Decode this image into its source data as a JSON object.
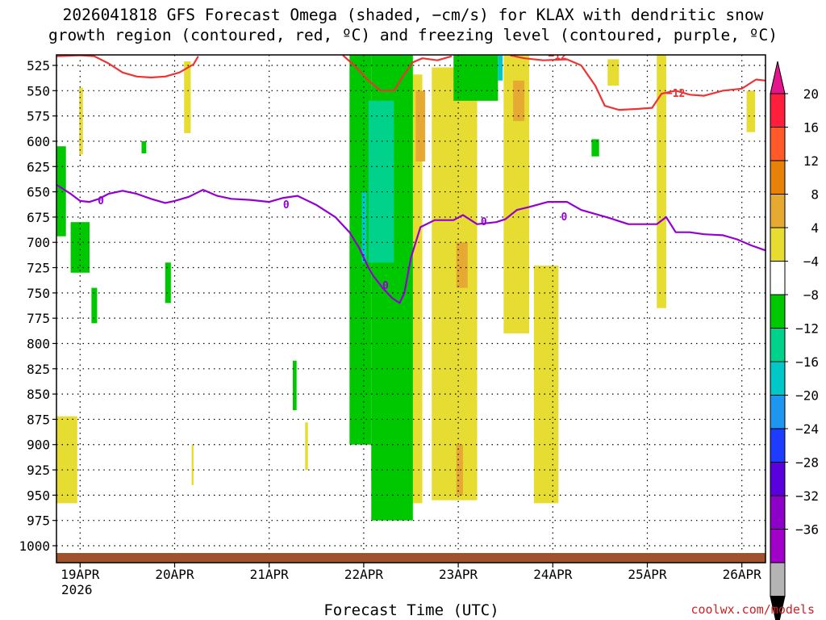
{
  "chart_data": {
    "type": "heatmap",
    "title_line1": "2026041818 GFS Forecast Omega (shaded, −cm/s) for KLAX with dendritic snow",
    "title_line2": "growth region (contoured, red, ºC) and freezing level (contoured, purple, ºC)",
    "xlabel": "Forecast Time (UTC)",
    "year_label": "2026",
    "credit": "coolwx.com/models",
    "x_ticks": [
      "19APR",
      "20APR",
      "21APR",
      "22APR",
      "23APR",
      "24APR",
      "25APR",
      "26APR"
    ],
    "x_range_days": [
      -0.25,
      7.25
    ],
    "y_ticks": [
      525,
      550,
      575,
      600,
      625,
      650,
      675,
      700,
      725,
      750,
      775,
      800,
      825,
      850,
      875,
      900,
      925,
      950,
      975,
      1000
    ],
    "y_range_hpa": [
      515,
      1010
    ],
    "colorbar": {
      "labels": [
        "20",
        "16",
        "12",
        "8",
        "4",
        "−4",
        "−8",
        "−12",
        "−16",
        "−20",
        "−24",
        "−28",
        "−32",
        "−36"
      ],
      "colors": [
        "#ff1e3c",
        "#ff5a28",
        "#e6820a",
        "#e6aa32",
        "#e6dc32",
        "#ffffff",
        "#00c800",
        "#00d28c",
        "#00c8c8",
        "#1e96f0",
        "#1e3cff",
        "#5a00dc",
        "#8c00c8",
        "#a000c8",
        "#b4b4b4"
      ],
      "top_color": "#e6148c",
      "bottom_color": "#000000"
    },
    "ground_color": "#a0522d",
    "series": [
      {
        "name": "freezing level (0 ºC)",
        "color": "#9400d3",
        "label": "0",
        "label_points": [
          [
            0.22,
            659
          ],
          [
            2.18,
            663
          ],
          [
            3.23,
            743
          ],
          [
            4.27,
            680
          ],
          [
            5.12,
            675
          ]
        ],
        "points": [
          [
            -0.25,
            643
          ],
          [
            -0.1,
            652
          ],
          [
            0.0,
            659
          ],
          [
            0.1,
            660
          ],
          [
            0.2,
            657
          ],
          [
            0.3,
            652
          ],
          [
            0.45,
            649
          ],
          [
            0.6,
            652
          ],
          [
            0.75,
            657
          ],
          [
            0.9,
            661
          ],
          [
            1.0,
            659
          ],
          [
            1.15,
            655
          ],
          [
            1.3,
            648
          ],
          [
            1.45,
            654
          ],
          [
            1.6,
            657
          ],
          [
            1.8,
            658
          ],
          [
            2.0,
            660
          ],
          [
            2.15,
            656
          ],
          [
            2.3,
            654
          ],
          [
            2.5,
            663
          ],
          [
            2.7,
            675
          ],
          [
            2.85,
            690
          ],
          [
            2.95,
            705
          ],
          [
            3.05,
            725
          ],
          [
            3.1,
            733
          ],
          [
            3.2,
            745
          ],
          [
            3.3,
            755
          ],
          [
            3.38,
            760
          ],
          [
            3.43,
            750
          ],
          [
            3.5,
            715
          ],
          [
            3.6,
            685
          ],
          [
            3.75,
            678
          ],
          [
            3.95,
            678
          ],
          [
            4.05,
            673
          ],
          [
            4.2,
            682
          ],
          [
            4.4,
            680
          ],
          [
            4.5,
            677
          ],
          [
            4.62,
            668
          ],
          [
            4.75,
            665
          ],
          [
            4.95,
            660
          ],
          [
            5.15,
            660
          ],
          [
            5.3,
            668
          ],
          [
            5.45,
            672
          ],
          [
            5.6,
            676
          ],
          [
            5.8,
            682
          ],
          [
            6.0,
            682
          ],
          [
            6.1,
            682
          ],
          [
            6.2,
            675
          ],
          [
            6.3,
            690
          ],
          [
            6.45,
            690
          ],
          [
            6.6,
            692
          ],
          [
            6.8,
            693
          ],
          [
            6.95,
            697
          ],
          [
            7.1,
            703
          ],
          [
            7.25,
            708
          ]
        ]
      },
      {
        "name": "dendritic growth region (−12 ºC)",
        "color": "#ee3333",
        "label": "−12",
        "label_points": [
          [
            5.05,
            516
          ],
          [
            6.3,
            553
          ]
        ],
        "segments": [
          [
            [
              -0.25,
              516
            ],
            [
              0.0,
              515
            ],
            [
              0.15,
              516
            ],
            [
              0.3,
              523
            ],
            [
              0.45,
              532
            ],
            [
              0.6,
              536
            ],
            [
              0.75,
              537
            ],
            [
              0.9,
              536
            ],
            [
              1.05,
              532
            ],
            [
              1.2,
              524
            ],
            [
              1.25,
              516
            ]
          ],
          [
            [
              2.78,
              515
            ],
            [
              2.9,
              525
            ],
            [
              3.05,
              540
            ],
            [
              3.18,
              550
            ],
            [
              3.32,
              550
            ],
            [
              3.42,
              535
            ],
            [
              3.52,
              522
            ],
            [
              3.62,
              518
            ],
            [
              3.78,
              520
            ],
            [
              3.93,
              516
            ]
          ],
          [
            [
              4.55,
              515
            ],
            [
              4.7,
              518
            ],
            [
              4.9,
              520
            ],
            [
              5.15,
              519
            ],
            [
              5.3,
              525
            ],
            [
              5.45,
              545
            ],
            [
              5.55,
              565
            ],
            [
              5.7,
              569
            ],
            [
              5.9,
              568
            ],
            [
              6.05,
              567
            ],
            [
              6.15,
              553
            ],
            [
              6.3,
              550
            ],
            [
              6.45,
              554
            ],
            [
              6.6,
              555
            ],
            [
              6.8,
              550
            ],
            [
              7.0,
              548
            ],
            [
              7.15,
              539
            ],
            [
              7.25,
              540
            ]
          ]
        ]
      }
    ],
    "omega_blobs": [
      {
        "value": 5,
        "day_range": [
          -0.25,
          -0.03
        ],
        "p_range": [
          872,
          958
        ]
      },
      {
        "value": 5,
        "day_range": [
          1.1,
          1.17
        ],
        "p_range": [
          521,
          592
        ]
      },
      {
        "value": 5,
        "day_range": [
          -0.01,
          0.03
        ],
        "p_range": [
          547,
          613
        ]
      },
      {
        "value": 5,
        "day_range": [
          3.48,
          3.62
        ],
        "p_range": [
          534,
          958
        ]
      },
      {
        "value": 5,
        "day_range": [
          3.72,
          4.2
        ],
        "p_range": [
          527,
          955
        ]
      },
      {
        "value": 5,
        "day_range": [
          4.48,
          4.75
        ],
        "p_range": [
          515,
          790
        ]
      },
      {
        "value": 5,
        "day_range": [
          5.58,
          5.7
        ],
        "p_range": [
          519,
          545
        ]
      },
      {
        "value": 5,
        "day_range": [
          6.1,
          6.2
        ],
        "p_range": [
          515,
          765
        ]
      },
      {
        "value": 5,
        "day_range": [
          4.8,
          5.06
        ],
        "p_range": [
          723,
          958
        ]
      },
      {
        "value": 5,
        "day_range": [
          2.38,
          2.41
        ],
        "p_range": [
          878,
          925
        ]
      },
      {
        "value": 5,
        "day_range": [
          1.18,
          1.2
        ],
        "p_range": [
          900,
          940
        ]
      },
      {
        "value": 5,
        "day_range": [
          3.08,
          3.11
        ],
        "p_range": [
          905,
          935
        ]
      },
      {
        "value": 5,
        "day_range": [
          7.05,
          7.14
        ],
        "p_range": [
          550,
          591
        ]
      },
      {
        "value": 9,
        "day_range": [
          3.55,
          3.65
        ],
        "p_range": [
          550,
          620
        ]
      },
      {
        "value": 9,
        "day_range": [
          3.98,
          4.1
        ],
        "p_range": [
          700,
          745
        ]
      },
      {
        "value": 9,
        "day_range": [
          4.58,
          4.7
        ],
        "p_range": [
          540,
          580
        ]
      },
      {
        "value": 9,
        "day_range": [
          3.98,
          4.05
        ],
        "p_range": [
          900,
          950
        ]
      },
      {
        "value": -6,
        "day_range": [
          -0.25,
          -0.15
        ],
        "p_range": [
          605,
          694
        ]
      },
      {
        "value": -6,
        "day_range": [
          -0.1,
          0.1
        ],
        "p_range": [
          680,
          730
        ]
      },
      {
        "value": -6,
        "day_range": [
          0.12,
          0.18
        ],
        "p_range": [
          745,
          780
        ]
      },
      {
        "value": -6,
        "day_range": [
          0.65,
          0.7
        ],
        "p_range": [
          600,
          612
        ]
      },
      {
        "value": -6,
        "day_range": [
          0.9,
          0.96
        ],
        "p_range": [
          720,
          760
        ]
      },
      {
        "value": -6,
        "day_range": [
          2.25,
          2.29
        ],
        "p_range": [
          817,
          866
        ]
      },
      {
        "value": -6,
        "day_range": [
          2.85,
          3.08
        ],
        "p_range": [
          515,
          900
        ]
      },
      {
        "value": -6,
        "day_range": [
          3.08,
          3.52
        ],
        "p_range": [
          515,
          975
        ]
      },
      {
        "value": -6,
        "day_range": [
          3.95,
          4.42
        ],
        "p_range": [
          515,
          560
        ]
      },
      {
        "value": -6,
        "day_range": [
          5.41,
          5.49
        ],
        "p_range": [
          598,
          615
        ]
      },
      {
        "value": -10,
        "day_range": [
          3.05,
          3.32
        ],
        "p_range": [
          560,
          720
        ]
      },
      {
        "value": -13,
        "day_range": [
          2.98,
          3.03
        ],
        "p_range": [
          650,
          720
        ]
      },
      {
        "value": -13,
        "day_range": [
          4.42,
          4.47
        ],
        "p_range": [
          515,
          540
        ]
      }
    ]
  }
}
